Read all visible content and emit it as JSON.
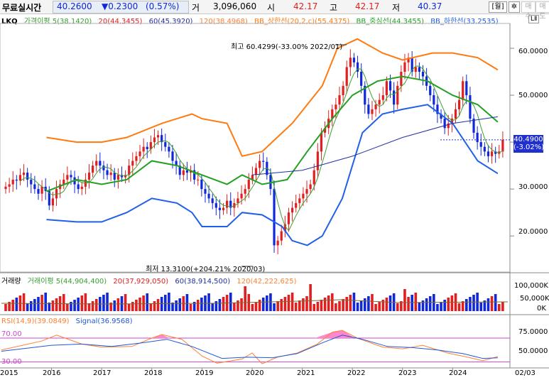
{
  "header": {
    "title": "무료실시간",
    "price": "40.2600",
    "change": "▼0.2300",
    "change_pct": "(0.57%)",
    "volume_label": "거",
    "volume": "3,096,060",
    "open_label": "시",
    "open": "42.17",
    "high_label": "고",
    "high": "42.17",
    "low_label": "저",
    "low": "40.37",
    "period_btn": "[월]",
    "settings_icon": "gear-icon",
    "buy_btn": "매수",
    "sell_btn": "매도"
  },
  "top_right_tag": "LⅡ",
  "price_legend": {
    "symbol": "LKQ",
    "ma5": "가격이평 5(38.1420)",
    "ma20": "20(44.3455)",
    "ma60": "60(45.3920)",
    "ma120": "120(38.4968)",
    "bb_upper": "BB_상한선(20,2,c)(55.4375)",
    "bb_mid": "BB_중심선(44.3455)",
    "bb_lower": "BB_하한선(33.2535)"
  },
  "volume_legend": {
    "label": "거래량",
    "ma5": "거래이평 5(44,904,400)",
    "ma20": "20(37,929,050)",
    "ma60": "60(38,914,500)",
    "ma120": "120(42,222,625)"
  },
  "rsi_legend": {
    "rsi": "RSI(14,9)(39.0849)",
    "signal": "Signal(36.9568)"
  },
  "annotations": {
    "high": "최고 60.4299(-33.00% 2022/01)",
    "low": "최저 13.3100(+204.21% 2020/03)"
  },
  "price_box": {
    "value": "40.4900",
    "pct": "(-3.02%)"
  },
  "colors": {
    "up": "#e02020",
    "down": "#1028d8",
    "bb_outer": "#ff7a10",
    "bb_lower": "#2060e8",
    "ma5": "#3aa030",
    "mid": "#22a022",
    "ma60": "#2030a0",
    "rsi": "#ff8030",
    "signal": "#2058d8",
    "rsi_band": "#cc44cc"
  },
  "chart_data": [
    {
      "type": "candlestick",
      "title": "LKQ",
      "x_range": [
        "2015-01",
        "2025-02"
      ],
      "ylim": [
        12,
        65
      ],
      "y_ticks": [
        "20.0000",
        "30.0000",
        "40.0000",
        "50.0000",
        "60.0000"
      ],
      "x_ticks": [
        "2015",
        "2016",
        "2017",
        "2018",
        "2019",
        "2020",
        "2021",
        "2022",
        "2023",
        "2024",
        "02/03"
      ],
      "close_monthly": [
        30.5,
        31,
        32,
        31.8,
        33,
        33.5,
        32,
        31,
        30,
        29,
        30.5,
        29.6,
        26.5,
        28,
        30,
        31,
        32,
        33,
        32.5,
        31,
        30,
        30.5,
        32,
        33.5,
        35,
        36,
        35,
        34,
        33,
        33.5,
        32,
        33,
        32.5,
        33,
        35,
        36,
        37,
        38,
        39,
        38.5,
        40,
        41,
        41.5,
        40,
        39,
        38,
        36,
        35,
        33,
        34,
        33.5,
        34,
        32,
        32,
        30,
        29,
        28,
        27,
        26,
        25.5,
        26,
        27.5,
        26,
        27,
        28,
        29,
        30,
        32,
        33,
        34.5,
        36,
        35.8,
        33,
        30,
        18,
        19,
        21,
        22.5,
        25,
        26,
        27,
        28,
        29,
        30,
        31,
        34,
        38,
        42,
        43,
        45,
        47,
        48,
        50,
        52,
        56,
        58,
        57,
        55,
        52,
        48,
        46,
        47,
        48,
        49,
        50,
        53,
        51,
        48,
        52,
        55,
        57,
        58,
        55,
        56,
        55,
        54,
        52,
        50,
        48,
        46,
        45,
        43,
        44,
        45,
        47,
        49,
        53,
        50,
        45,
        42,
        40,
        39,
        38,
        37,
        38,
        37.5,
        38,
        40.49
      ],
      "series": [
        {
          "name": "BB_상한선",
          "points": [
            [
              2015.9,
              41
            ],
            [
              2016.5,
              40
            ],
            [
              2017,
              40
            ],
            [
              2017.5,
              41
            ],
            [
              2018.2,
              44
            ],
            [
              2018.8,
              46
            ],
            [
              2019,
              45
            ],
            [
              2019.5,
              44
            ],
            [
              2019.8,
              37
            ],
            [
              2020.2,
              38
            ],
            [
              2020.8,
              44
            ],
            [
              2021.1,
              48
            ],
            [
              2021.4,
              52
            ],
            [
              2021.7,
              60
            ],
            [
              2022.1,
              62
            ],
            [
              2022.6,
              59
            ],
            [
              2023,
              57.5
            ],
            [
              2023.6,
              59
            ],
            [
              2024,
              59
            ],
            [
              2024.5,
              58
            ],
            [
              2024.9,
              55.4
            ]
          ]
        },
        {
          "name": "BB_중심선",
          "points": [
            [
              2015.9,
              29.5
            ],
            [
              2016.5,
              32
            ],
            [
              2017,
              31
            ],
            [
              2017.5,
              32
            ],
            [
              2018,
              36
            ],
            [
              2018.5,
              35
            ],
            [
              2019,
              33
            ],
            [
              2019.5,
              31
            ],
            [
              2019.8,
              33
            ],
            [
              2020.2,
              31
            ],
            [
              2020.7,
              32
            ],
            [
              2021.1,
              38
            ],
            [
              2021.6,
              45
            ],
            [
              2022,
              50
            ],
            [
              2022.5,
              53
            ],
            [
              2023,
              54
            ],
            [
              2023.5,
              53
            ],
            [
              2024,
              50
            ],
            [
              2024.5,
              48
            ],
            [
              2024.9,
              44.3
            ]
          ]
        },
        {
          "name": "BB_하한선",
          "points": [
            [
              2015.9,
              23.5
            ],
            [
              2016.5,
              23
            ],
            [
              2017,
              23
            ],
            [
              2017.5,
              25
            ],
            [
              2018,
              28
            ],
            [
              2018.5,
              27
            ],
            [
              2018.8,
              25
            ],
            [
              2019,
              22
            ],
            [
              2019.5,
              22
            ],
            [
              2019.8,
              25
            ],
            [
              2020.2,
              24.5
            ],
            [
              2020.6,
              22
            ],
            [
              2020.8,
              19
            ],
            [
              2021.1,
              18
            ],
            [
              2021.4,
              20
            ],
            [
              2021.8,
              28
            ],
            [
              2022.2,
              42
            ],
            [
              2022.6,
              46
            ],
            [
              2023,
              47
            ],
            [
              2023.5,
              48
            ],
            [
              2024,
              44
            ],
            [
              2024.5,
              36
            ],
            [
              2024.9,
              33.3
            ]
          ]
        },
        {
          "name": "60",
          "points": [
            [
              2020,
              33
            ],
            [
              2021,
              34
            ],
            [
              2022,
              37
            ],
            [
              2023,
              41
            ],
            [
              2024,
              44
            ],
            [
              2024.9,
              45.4
            ]
          ]
        }
      ]
    },
    {
      "type": "bar",
      "title": "거래량",
      "y_ticks": [
        "100,000K",
        "50,000K",
        "0K"
      ]
    },
    {
      "type": "line",
      "title": "RSI(14,9)",
      "ylim": [
        20,
        95
      ],
      "bands": [
        70,
        30
      ],
      "y_ticks": [
        "75.0000",
        "50.0000"
      ],
      "band_labels": [
        "70.00",
        "30.00"
      ],
      "series": [
        {
          "name": "RSI",
          "points": [
            [
              2015,
              50
            ],
            [
              2015.8,
              65
            ],
            [
              2016.1,
              75
            ],
            [
              2016.6,
              60
            ],
            [
              2017,
              55
            ],
            [
              2017.6,
              56
            ],
            [
              2018,
              70
            ],
            [
              2018.2,
              76
            ],
            [
              2018.6,
              68
            ],
            [
              2019,
              40
            ],
            [
              2019.3,
              28
            ],
            [
              2019.8,
              35
            ],
            [
              2020,
              45
            ],
            [
              2020.2,
              27
            ],
            [
              2020.5,
              38
            ],
            [
              2020.9,
              45
            ],
            [
              2021.3,
              60
            ],
            [
              2021.6,
              80
            ],
            [
              2021.8,
              83
            ],
            [
              2022.1,
              70
            ],
            [
              2022.6,
              55
            ],
            [
              2023,
              52
            ],
            [
              2023.4,
              58
            ],
            [
              2023.9,
              45
            ],
            [
              2024.3,
              38
            ],
            [
              2024.6,
              32
            ],
            [
              2024.9,
              39
            ]
          ]
        },
        {
          "name": "Signal",
          "points": [
            [
              2015,
              48
            ],
            [
              2016,
              58
            ],
            [
              2016.6,
              60
            ],
            [
              2017.2,
              56
            ],
            [
              2017.8,
              62
            ],
            [
              2018.3,
              68
            ],
            [
              2018.8,
              56
            ],
            [
              2019.4,
              36
            ],
            [
              2019.9,
              38
            ],
            [
              2020.4,
              37
            ],
            [
              2020.9,
              44
            ],
            [
              2021.4,
              62
            ],
            [
              2021.8,
              75
            ],
            [
              2022.2,
              68
            ],
            [
              2022.7,
              56
            ],
            [
              2023.2,
              54
            ],
            [
              2023.7,
              50
            ],
            [
              2024.2,
              44
            ],
            [
              2024.6,
              36
            ],
            [
              2024.9,
              37
            ]
          ]
        }
      ]
    }
  ]
}
